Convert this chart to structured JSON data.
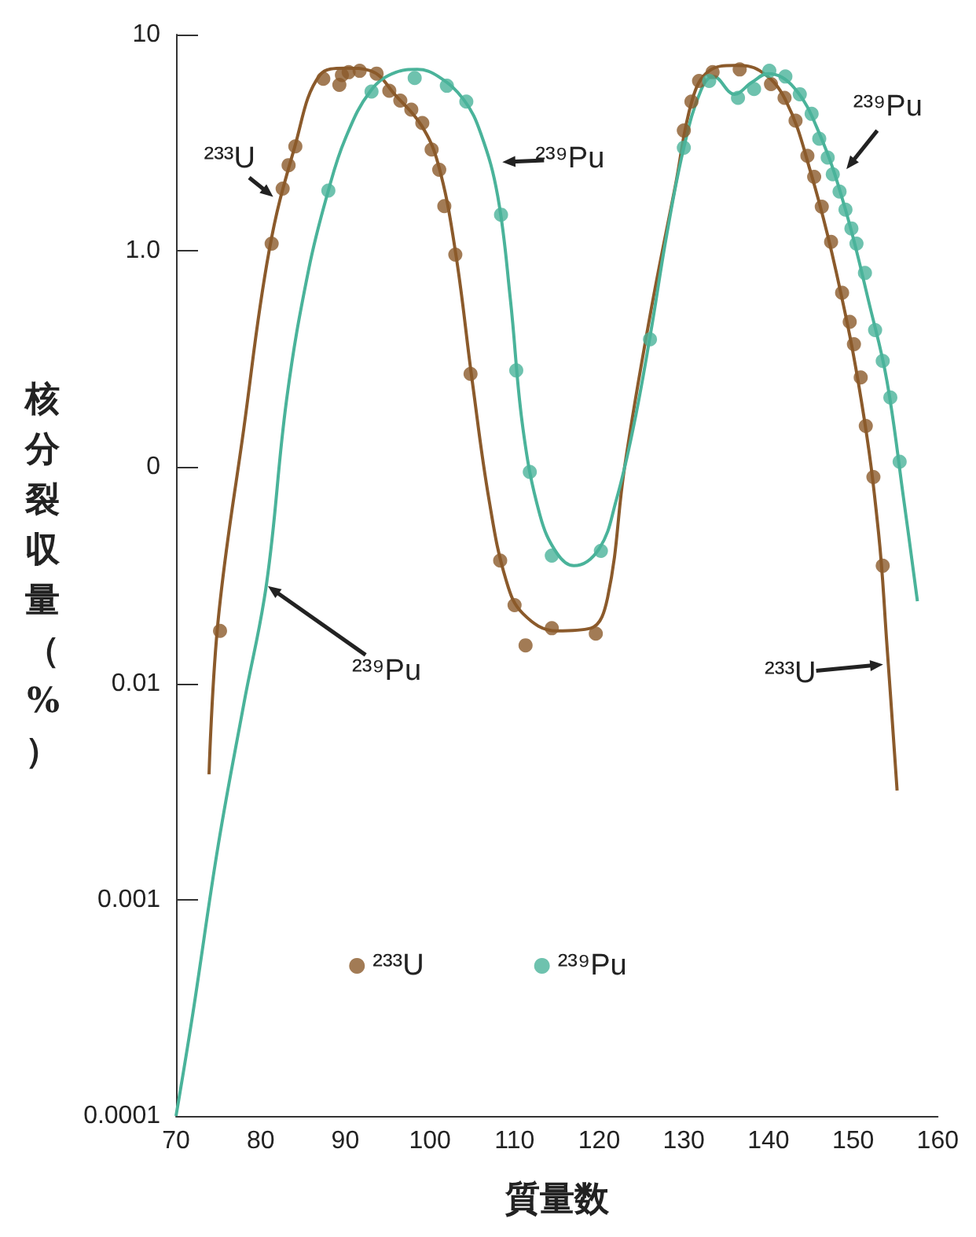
{
  "chart_data": {
    "type": "scatter",
    "xlabel": "質量数",
    "ylabel": "核分裂収量（%）",
    "log": "y",
    "grid": false,
    "legend": "bottom",
    "xlim": [
      70,
      160
    ],
    "xticks": [
      70,
      80,
      90,
      100,
      110,
      120,
      130,
      140,
      150,
      160
    ],
    "ylim": [
      0.0001,
      10
    ],
    "yticks": [
      {
        "value": 0.0001,
        "label": "0.0001"
      },
      {
        "value": 0.001,
        "label": "0.001"
      },
      {
        "value": 0.01,
        "label": "0.01"
      },
      {
        "value": 0.1,
        "label": "0"
      },
      {
        "value": 1,
        "label": "1.0"
      },
      {
        "value": 10,
        "label": "10"
      }
    ],
    "series": [
      {
        "name": "²³³U",
        "marker": "circle",
        "color": "#8b5a2b",
        "x": [
          75.2,
          81.3,
          82.6,
          83.3,
          84.1,
          87.4,
          89.3,
          89.6,
          90.4,
          91.7,
          93.7,
          95.2,
          96.5,
          97.8,
          99.1,
          100.2,
          101.1,
          101.7,
          103.0,
          104.8,
          108.3,
          110.0,
          111.3,
          114.4,
          119.6,
          130.0,
          130.9,
          131.8,
          133.4,
          136.6,
          140.3,
          141.9,
          143.2,
          144.6,
          145.4,
          146.3,
          147.4,
          148.7,
          149.6,
          150.1,
          150.9,
          151.5,
          152.4,
          153.5
        ],
        "values": [
          0.0175,
          1.08,
          1.94,
          2.49,
          3.04,
          6.25,
          5.85,
          6.5,
          6.7,
          6.8,
          6.6,
          5.5,
          4.95,
          4.5,
          3.9,
          2.94,
          2.37,
          1.61,
          0.96,
          0.27,
          0.037,
          0.023,
          0.015,
          0.018,
          0.017,
          3.6,
          4.9,
          6.1,
          6.7,
          6.9,
          5.9,
          5.1,
          4.0,
          2.75,
          2.2,
          1.6,
          1.1,
          0.64,
          0.47,
          0.37,
          0.26,
          0.155,
          0.09,
          0.035
        ]
      },
      {
        "name": "²³⁹Pu",
        "marker": "circle",
        "color": "#4ab39a",
        "x": [
          88.0,
          93.1,
          98.2,
          102.0,
          104.3,
          108.4,
          110.2,
          111.8,
          114.4,
          120.2,
          126.0,
          130.0,
          133.0,
          136.4,
          138.3,
          140.1,
          142.0,
          143.7,
          145.1,
          146.0,
          147.0,
          147.6,
          148.4,
          149.1,
          149.8,
          150.4,
          151.4,
          152.6,
          153.5,
          154.4,
          155.5
        ],
        "values": [
          1.9,
          5.45,
          6.3,
          5.8,
          4.9,
          1.47,
          0.28,
          0.095,
          0.039,
          0.041,
          0.39,
          3.0,
          6.1,
          5.1,
          5.6,
          6.8,
          6.4,
          5.3,
          4.3,
          3.3,
          2.7,
          2.26,
          1.88,
          1.55,
          1.27,
          1.08,
          0.79,
          0.43,
          0.31,
          0.21,
          0.106
        ]
      },
      {
        "type": "line",
        "marker": "none",
        "color": "#8b5a2b",
        "x": [
          73.9,
          75,
          78,
          81,
          84,
          87,
          90,
          93,
          96,
          99,
          101,
          103,
          105,
          107,
          109,
          111,
          115,
          119,
          121,
          123,
          126,
          129,
          131,
          133,
          136,
          139,
          142,
          145,
          148,
          151,
          153,
          154,
          155.2
        ],
        "values": [
          0.0038,
          0.02,
          0.15,
          1.0,
          3.0,
          6.5,
          7.0,
          6.8,
          5.2,
          3.8,
          2.5,
          1.0,
          0.25,
          0.07,
          0.03,
          0.021,
          0.0175,
          0.018,
          0.025,
          0.1,
          0.5,
          2.0,
          5.0,
          6.8,
          7.2,
          6.8,
          5.0,
          2.3,
          0.8,
          0.2,
          0.05,
          0.015,
          0.0032
        ]
      },
      {
        "type": "line",
        "marker": "none",
        "color": "#4ab39a",
        "x": [
          70,
          72,
          75,
          78,
          80.7,
          83.1,
          85.7,
          88,
          90,
          93,
          96,
          98.5,
          101,
          104,
          106,
          108,
          109.5,
          111,
          113,
          115,
          117,
          120,
          122,
          124,
          126,
          128,
          130,
          132,
          133.5,
          136,
          138,
          140,
          143,
          146,
          149,
          152,
          154,
          156,
          157.6
        ],
        "values": [
          0.0001,
          0.0003,
          0.0018,
          0.008,
          0.029,
          0.21,
          0.83,
          1.9,
          3.3,
          5.5,
          6.7,
          6.9,
          6.4,
          5.0,
          3.5,
          1.8,
          0.6,
          0.15,
          0.06,
          0.04,
          0.035,
          0.042,
          0.07,
          0.15,
          0.4,
          1.2,
          3.0,
          5.5,
          6.4,
          5.3,
          6.0,
          6.6,
          5.7,
          3.5,
          1.6,
          0.55,
          0.25,
          0.07,
          0.024
        ]
      }
    ],
    "annotations": [
      {
        "text": "²³³U",
        "x": 81.9,
        "y": 1.72
      },
      {
        "text": "²³⁹Pu",
        "x": 108.0,
        "y": 2.57
      },
      {
        "text": "²³⁹Pu",
        "x": 148.9,
        "y": 2.29
      },
      {
        "text": "²³⁹Pu",
        "x": 80.4,
        "y": 0.029
      },
      {
        "text": "²³³U",
        "x": 154.1,
        "y": 0.0123
      }
    ]
  }
}
